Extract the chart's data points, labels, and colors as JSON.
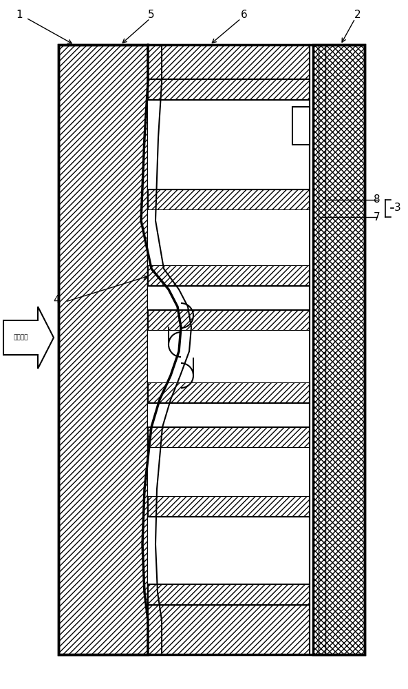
{
  "bg_color": "#ffffff",
  "line_color": "#000000",
  "lw_main": 1.5,
  "lw_thick": 2.5,
  "lw_thin": 1.0,
  "label_fontsize": 11,
  "arrow_text": "押出方向",
  "figsize": [
    5.93,
    10.0
  ],
  "dpi": 100
}
